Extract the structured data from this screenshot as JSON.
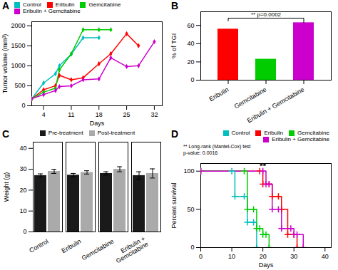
{
  "chart_data": [
    {
      "type": "line",
      "title": "A",
      "xlabel": "Days",
      "ylabel": "Tumor volume (mm³)",
      "xlim": [
        1,
        34
      ],
      "ylim": [
        0,
        2100
      ],
      "xticks": [
        4,
        11,
        18,
        25,
        32
      ],
      "yticks": [
        0,
        500,
        1000,
        1500,
        2000
      ],
      "legend": "upper left",
      "series": [
        {
          "name": "Control",
          "color": "#00BFBF",
          "marker": "diamond",
          "x": [
            1,
            4,
            7,
            8,
            11,
            14,
            18
          ],
          "values": [
            175,
            570,
            800,
            1000,
            1290,
            1700,
            1700
          ]
        },
        {
          "name": "Eribulin",
          "color": "#FF0000",
          "marker": "diamond",
          "x": [
            1,
            4,
            7,
            8,
            11,
            14,
            18,
            21,
            25,
            28
          ],
          "values": [
            175,
            400,
            500,
            760,
            650,
            700,
            1050,
            1300,
            1800,
            1500
          ]
        },
        {
          "name": "Gemcitabine",
          "color": "#00CC00",
          "marker": "diamond",
          "x": [
            1,
            4,
            7,
            8,
            11,
            14,
            18,
            21
          ],
          "values": [
            175,
            340,
            440,
            900,
            1300,
            1900,
            1900,
            1900
          ]
        },
        {
          "name": "Eribulin + Gemcitabine",
          "color": "#CC00CC",
          "marker": "diamond",
          "x": [
            1,
            4,
            7,
            8,
            11,
            14,
            18,
            21,
            25,
            28,
            32
          ],
          "values": [
            175,
            280,
            380,
            480,
            500,
            650,
            670,
            1200,
            980,
            1000,
            1600
          ]
        }
      ]
    },
    {
      "type": "bar",
      "title": "B",
      "ylabel": "% of TGI",
      "categories": [
        "Eribulin",
        "Gemcitabine",
        "Eribulin + Gemcitabine"
      ],
      "values": [
        56,
        23,
        63
      ],
      "colors": [
        "#FF0000",
        "#00CC00",
        "#CC00CC"
      ],
      "ylim": [
        0,
        75
      ],
      "yticks": [
        0,
        20,
        40,
        60
      ],
      "annotations": [
        {
          "text": "** p=0.0002",
          "from": "Eribulin",
          "to": "Eribulin + Gemcitabine",
          "y": 68,
          "ends": [
            65,
            63
          ]
        }
      ]
    },
    {
      "type": "bar",
      "title": "C",
      "ylabel": "Weight (g)",
      "categories": [
        "Control",
        "Eribulin",
        "Gemcitabine",
        "Eribulin +\nGemcitabine"
      ],
      "series": [
        {
          "name": "Pre-treatment",
          "color": "#1a1a1a",
          "values": [
            27.0,
            27.2,
            28.0,
            27.0
          ],
          "errors": [
            0.8,
            0.8,
            0.8,
            1.8
          ]
        },
        {
          "name": "Post-treatment",
          "color": "#aaaaaa",
          "values": [
            29.0,
            28.5,
            30.0,
            28.0
          ],
          "errors": [
            1.0,
            0.8,
            1.2,
            2.2
          ]
        }
      ],
      "ylim": [
        0,
        43
      ],
      "yticks": [
        0,
        10,
        20,
        30,
        40
      ],
      "legend": "upper center"
    },
    {
      "type": "step",
      "title": "D",
      "xlabel": "Days",
      "ylabel": "Percent survival",
      "xlim": [
        0,
        42
      ],
      "ylim": [
        0,
        110
      ],
      "xticks": [
        0,
        10,
        20,
        30,
        40
      ],
      "yticks": [
        0,
        50,
        100
      ],
      "legend": "upper right",
      "series": [
        {
          "name": "Control",
          "color": "#00BFBF",
          "marker": "plus",
          "x": [
            0,
            10,
            11,
            14,
            15,
            17,
            18
          ],
          "values": [
            100,
            100,
            67,
            67,
            33,
            33,
            0
          ]
        },
        {
          "name": "Eribulin",
          "color": "#FF0000",
          "marker": "plus",
          "x": [
            0,
            19,
            20,
            22,
            23,
            25,
            26,
            28,
            30,
            31
          ],
          "values": [
            100,
            100,
            83,
            83,
            67,
            67,
            50,
            17,
            17,
            0
          ]
        },
        {
          "name": "Gemcitabine",
          "color": "#00CC00",
          "marker": "plus",
          "x": [
            0,
            14,
            15,
            17,
            18,
            19,
            20,
            21,
            22
          ],
          "values": [
            100,
            100,
            50,
            50,
            25,
            25,
            17,
            17,
            0
          ]
        },
        {
          "name": "Eribulin + Gemcitabine",
          "color": "#CC00CC",
          "marker": "plus",
          "x": [
            0,
            20,
            21,
            22,
            23,
            25,
            26,
            29,
            30,
            31,
            33
          ],
          "values": [
            100,
            100,
            83,
            83,
            50,
            50,
            25,
            25,
            17,
            17,
            0
          ]
        }
      ],
      "annotations": [
        {
          "text": "**",
          "x": 20,
          "y": 103
        },
        {
          "text": "** Long-rank (Mantel-Cox) test\np-value: 0.0016"
        }
      ]
    }
  ]
}
